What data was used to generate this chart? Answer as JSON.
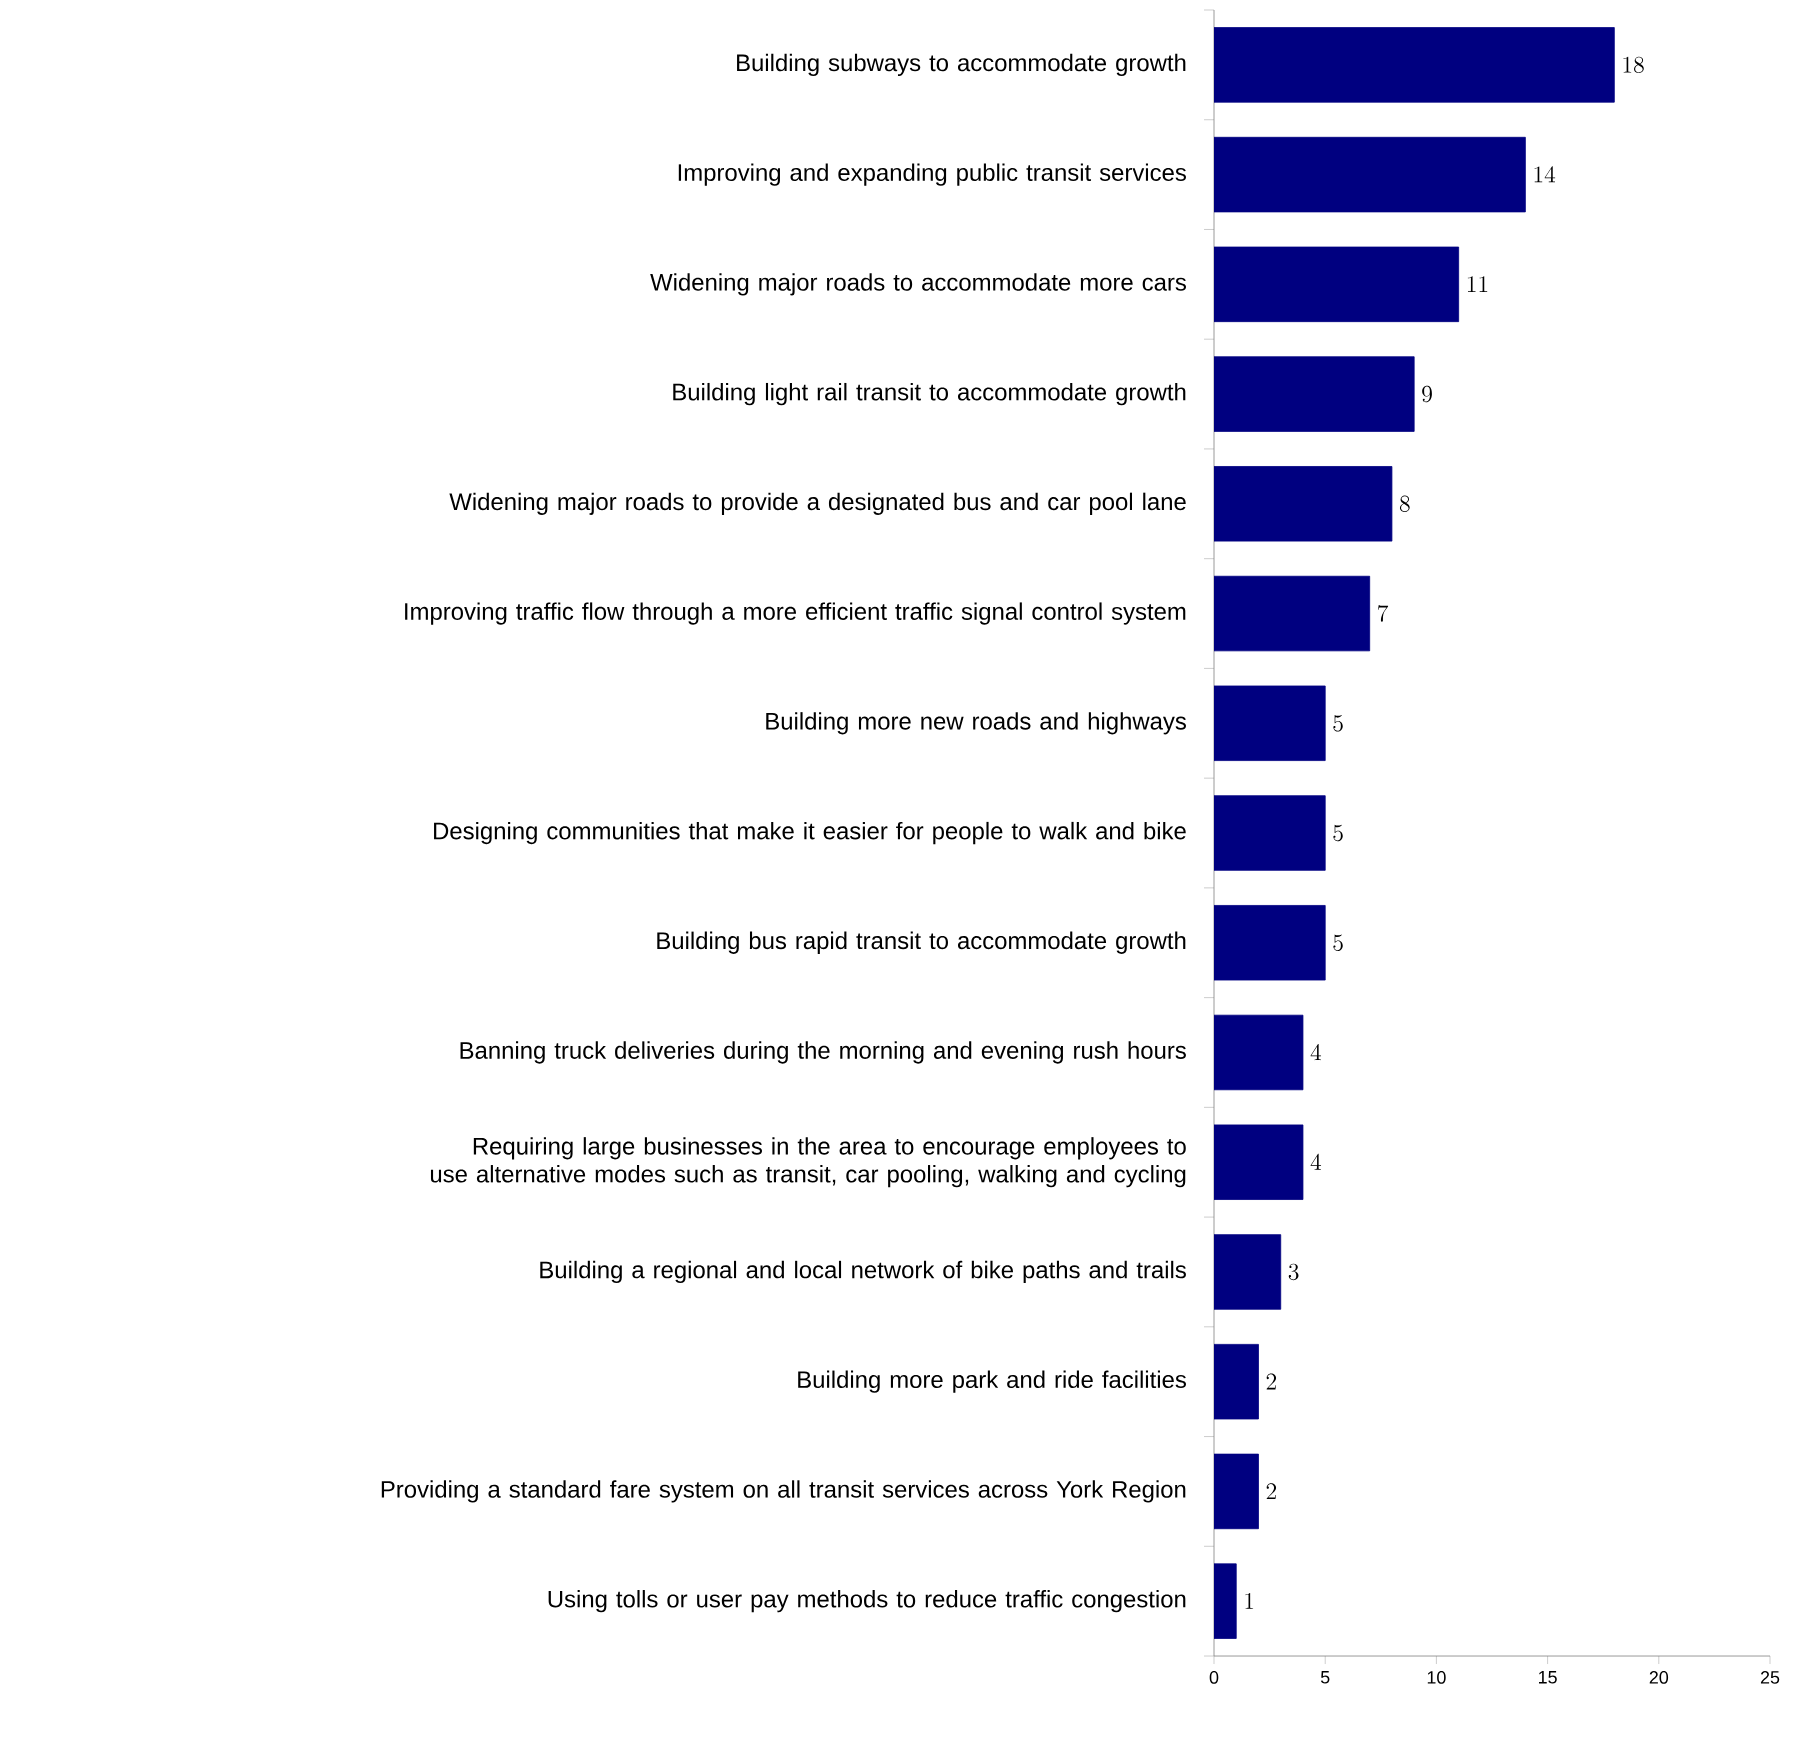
{
  "chart_data": {
    "type": "bar",
    "orientation": "horizontal",
    "categories": [
      "Building subways to accommodate growth",
      "Improving and expanding public transit services",
      "Widening major roads to accommodate more cars",
      "Building light rail transit to accommodate growth",
      "Widening major roads to provide a designated bus and car pool lane",
      "Improving traffic flow through a more efficient traffic signal control system",
      "Building more new roads and highways",
      "Designing communities that make it easier for people to walk and bike",
      "Building bus rapid transit to accommodate growth",
      "Banning truck deliveries during the morning and evening rush hours",
      "Requiring large businesses in the area to encourage employees to use alternative modes such as transit, car pooling, walking and cycling",
      "Building a regional and local network of bike paths and trails",
      "Building more park and ride facilities",
      "Providing a standard fare system on all transit services across York Region",
      "Using tolls or user pay methods to reduce traffic congestion"
    ],
    "values": [
      18,
      14,
      11,
      9,
      8,
      7,
      5,
      5,
      5,
      4,
      4,
      3,
      2,
      2,
      1
    ],
    "color": "#000080",
    "xlim": [
      0,
      25
    ],
    "xticks": [
      0,
      5,
      10,
      15,
      20,
      25
    ],
    "data_labels": true
  }
}
